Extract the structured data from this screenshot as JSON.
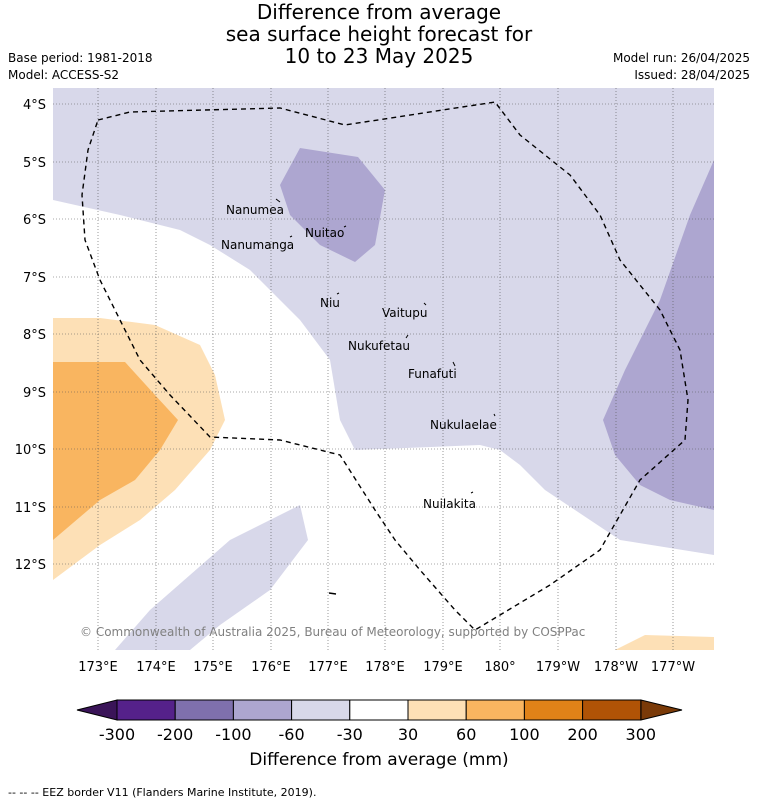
{
  "title": {
    "line1": "Difference from average",
    "line2": "sea surface height forecast for",
    "line3": "10 to 23 May 2025"
  },
  "meta": {
    "base_period": "Base period: 1981-2018",
    "model": "Model: ACCESS-S2",
    "model_run": "Model run: 26/04/2025",
    "issued": "Issued: 28/04/2025"
  },
  "map": {
    "lat_ticks": [
      "4°S",
      "5°S",
      "6°S",
      "7°S",
      "8°S",
      "9°S",
      "10°S",
      "11°S",
      "12°S"
    ],
    "lon_ticks": [
      "173°E",
      "174°E",
      "175°E",
      "176°E",
      "177°E",
      "178°E",
      "179°E",
      "180°",
      "179°W",
      "178°W",
      "177°W"
    ],
    "islands": [
      "Nanumea",
      "Nuitao",
      "Nanumanga",
      "Niu",
      "Vaitupu",
      "Nukufetau",
      "Funafuti",
      "Nukulaelae",
      "Nuilakita"
    ],
    "copyright": "© Commonwealth of Australia 2025, Bureau of Meteorology, supported by COSPPac"
  },
  "colorbar": {
    "labels": [
      "-300",
      "-200",
      "-100",
      "-60",
      "-30",
      "30",
      "60",
      "100",
      "200",
      "300"
    ],
    "colors": {
      "below": "#3a1458",
      "bins": [
        "#55218a",
        "#7f70ad",
        "#ada6d0",
        "#d8d8ea",
        "#ffffff",
        "#fde0b6",
        "#f9b560",
        "#e08218",
        "#b05306"
      ],
      "above": "#7a3a08"
    },
    "title": "Difference from average (mm)"
  },
  "footer": {
    "legend": "--  --  -- EEZ border V11 (Flanders Marine Institute, 2019)."
  }
}
